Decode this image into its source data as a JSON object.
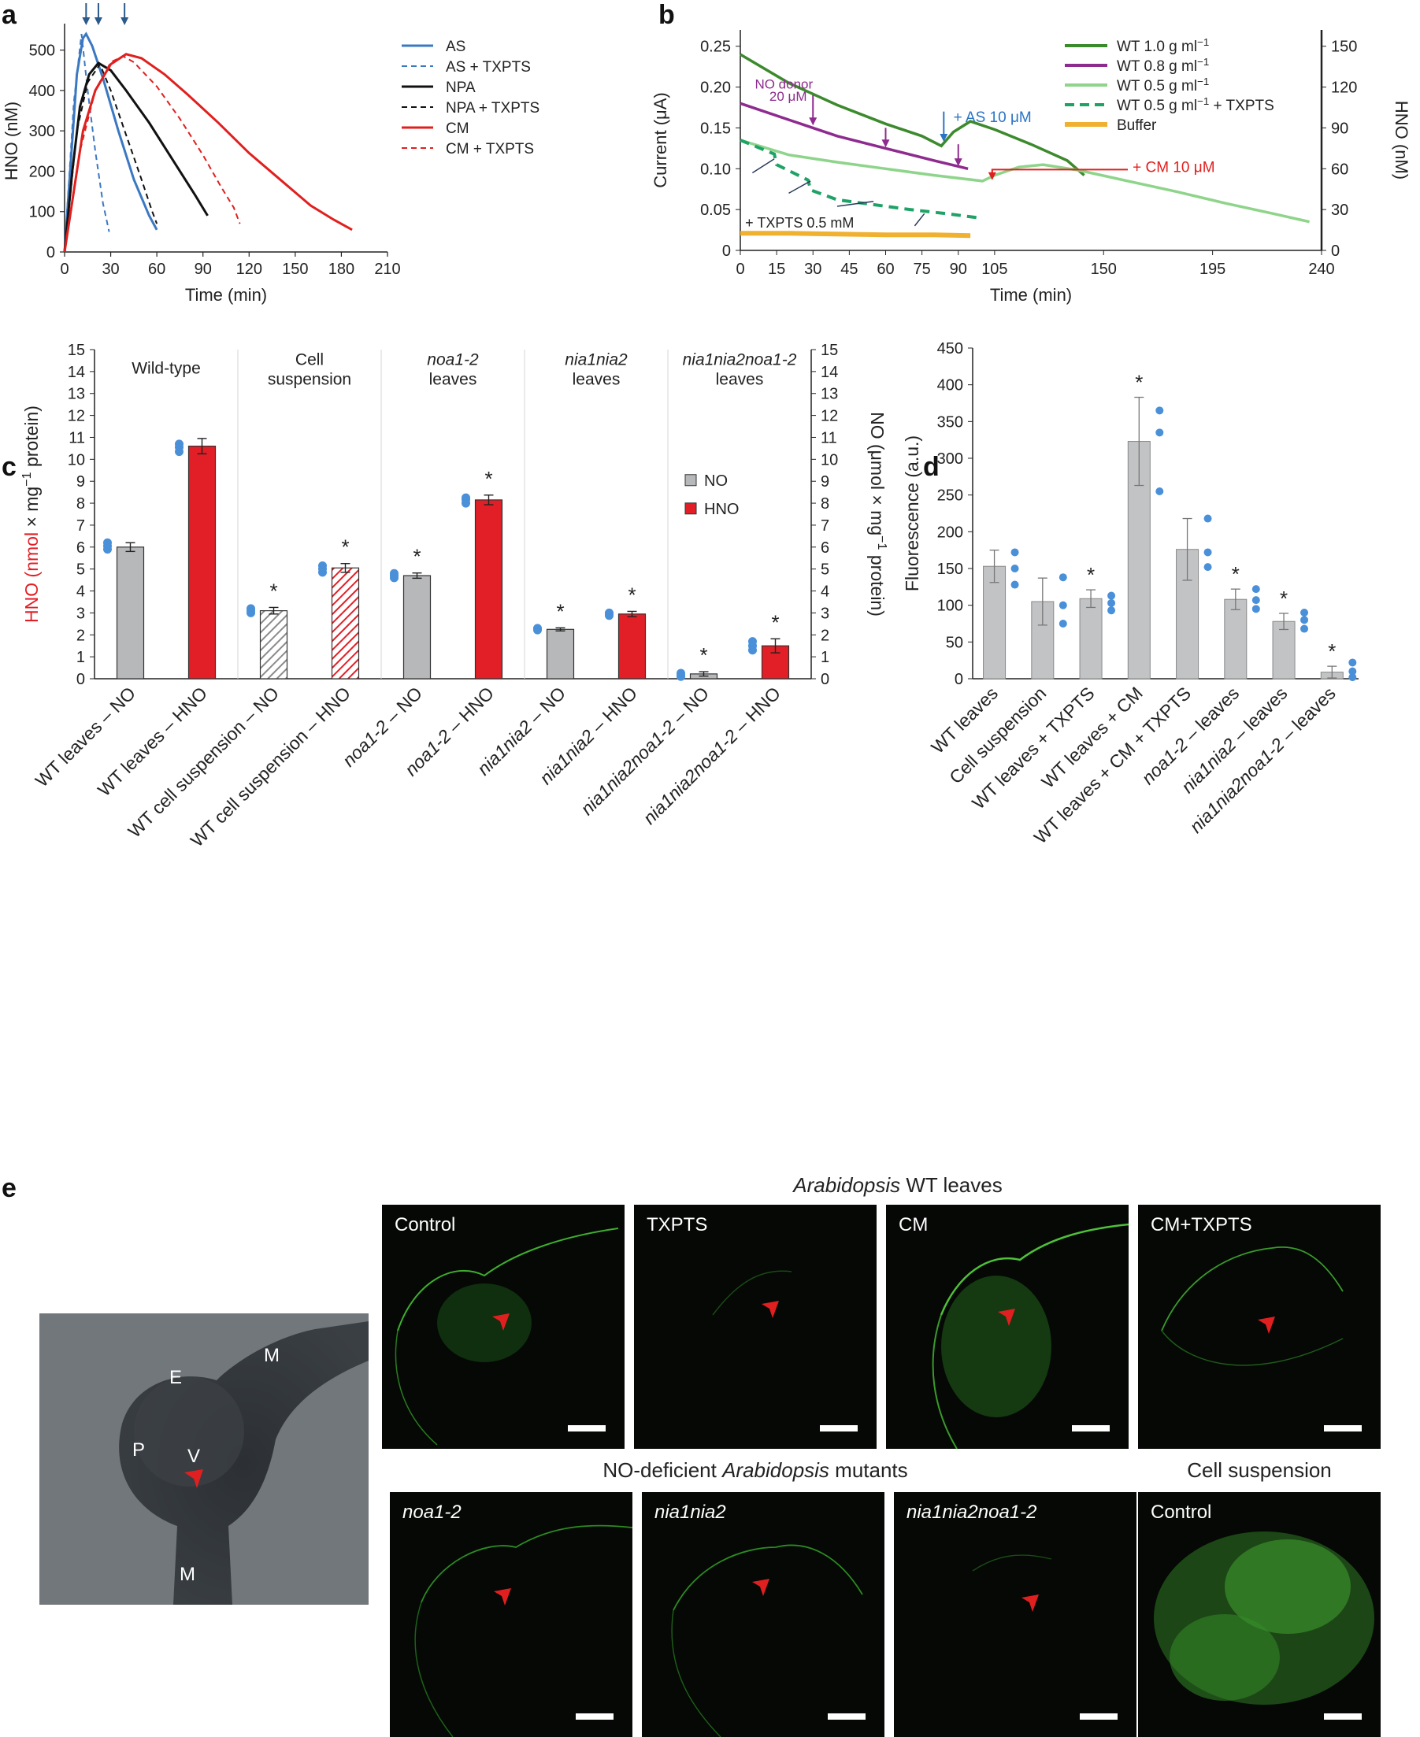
{
  "panel_labels": {
    "a": "a",
    "b": "b",
    "c": "c",
    "d": "d",
    "e": "e"
  },
  "chart_data": [
    {
      "id": "a",
      "type": "line",
      "xlabel": "Time (min)",
      "ylabel": "HNO (nM)",
      "xlim": [
        0,
        210
      ],
      "ylim": [
        0,
        550
      ],
      "xticks": [
        0,
        30,
        60,
        90,
        120,
        150,
        180,
        210
      ],
      "yticks": [
        0,
        100,
        200,
        300,
        400,
        500
      ],
      "legend_position": "top-right",
      "series": [
        {
          "name": "AS",
          "color": "#3b78c2",
          "dash": false,
          "points": [
            [
              0,
              0
            ],
            [
              4,
              220
            ],
            [
              8,
              440
            ],
            [
              12,
              530
            ],
            [
              14,
              540
            ],
            [
              18,
              510
            ],
            [
              25,
              430
            ],
            [
              35,
              300
            ],
            [
              45,
              180
            ],
            [
              55,
              90
            ],
            [
              60,
              55
            ]
          ]
        },
        {
          "name": "AS + TXPTS",
          "color": "#3b78c2",
          "dash": true,
          "points": [
            [
              0,
              0
            ],
            [
              6,
              370
            ],
            [
              11,
              540
            ],
            [
              15,
              400
            ],
            [
              20,
              250
            ],
            [
              25,
              120
            ],
            [
              29,
              50
            ]
          ]
        },
        {
          "name": "NPA",
          "color": "#111111",
          "dash": false,
          "points": [
            [
              0,
              0
            ],
            [
              5,
              200
            ],
            [
              10,
              360
            ],
            [
              16,
              440
            ],
            [
              22,
              468
            ],
            [
              30,
              450
            ],
            [
              40,
              400
            ],
            [
              55,
              320
            ],
            [
              70,
              230
            ],
            [
              85,
              140
            ],
            [
              93,
              90
            ]
          ]
        },
        {
          "name": "NPA + TXPTS",
          "color": "#111111",
          "dash": true,
          "points": [
            [
              0,
              0
            ],
            [
              8,
              300
            ],
            [
              15,
              420
            ],
            [
              23,
              465
            ],
            [
              30,
              400
            ],
            [
              40,
              290
            ],
            [
              50,
              180
            ],
            [
              57,
              100
            ],
            [
              60,
              70
            ]
          ]
        },
        {
          "name": "CM",
          "color": "#e0201e",
          "dash": false,
          "points": [
            [
              0,
              0
            ],
            [
              6,
              150
            ],
            [
              12,
              300
            ],
            [
              20,
              400
            ],
            [
              30,
              465
            ],
            [
              40,
              490
            ],
            [
              50,
              480
            ],
            [
              65,
              440
            ],
            [
              80,
              390
            ],
            [
              100,
              320
            ],
            [
              120,
              245
            ],
            [
              140,
              180
            ],
            [
              160,
              115
            ],
            [
              175,
              80
            ],
            [
              187,
              55
            ]
          ]
        },
        {
          "name": "CM + TXPTS",
          "color": "#e0201e",
          "dash": true,
          "points": [
            [
              0,
              0
            ],
            [
              10,
              250
            ],
            [
              20,
              400
            ],
            [
              30,
              470
            ],
            [
              38,
              485
            ],
            [
              45,
              470
            ],
            [
              60,
              410
            ],
            [
              75,
              330
            ],
            [
              90,
              240
            ],
            [
              102,
              160
            ],
            [
              110,
              110
            ],
            [
              114,
              70
            ]
          ]
        }
      ],
      "arrows_x": [
        14,
        22,
        39
      ]
    },
    {
      "id": "b",
      "type": "line",
      "xlabel": "Time (min)",
      "ylabel": "Current (μA)",
      "ylabel_right": "HNO (nM)",
      "xlim": [
        0,
        240
      ],
      "ylim": [
        0,
        0.27
      ],
      "ylim_right": [
        0,
        162
      ],
      "xticks": [
        0,
        15,
        30,
        45,
        60,
        75,
        90,
        105,
        150,
        195,
        240
      ],
      "yticks": [
        0,
        0.05,
        0.1,
        0.15,
        0.2,
        0.25
      ],
      "yticks_labels": [
        "0",
        "0.05",
        "0.10",
        "0.15",
        "0.20",
        "0.25"
      ],
      "yticks_right": [
        0,
        30,
        60,
        90,
        120,
        150
      ],
      "legend_position": "top-right",
      "series": [
        {
          "name": "WT 1.0 g ml",
          "sup": "−1",
          "color": "#3d8a2e",
          "dash": false,
          "points": [
            [
              0,
              0.24
            ],
            [
              20,
              0.205
            ],
            [
              40,
              0.178
            ],
            [
              60,
              0.155
            ],
            [
              75,
              0.14
            ],
            [
              83,
              0.128
            ],
            [
              88,
              0.145
            ],
            [
              95,
              0.158
            ],
            [
              105,
              0.148
            ],
            [
              120,
              0.13
            ],
            [
              135,
              0.11
            ],
            [
              142,
              0.092
            ]
          ]
        },
        {
          "name": "WT 0.8 g ml",
          "sup": "−1",
          "color": "#8e2b8e",
          "dash": false,
          "points": [
            [
              0,
              0.18
            ],
            [
              20,
              0.16
            ],
            [
              40,
              0.14
            ],
            [
              60,
              0.125
            ],
            [
              80,
              0.11
            ],
            [
              94,
              0.1
            ]
          ]
        },
        {
          "name": "WT 0.5 g ml",
          "sup": "−1",
          "color": "#8ed48a",
          "dash": false,
          "points": [
            [
              0,
              0.135
            ],
            [
              20,
              0.117
            ],
            [
              40,
              0.108
            ],
            [
              60,
              0.1
            ],
            [
              80,
              0.092
            ],
            [
              100,
              0.085
            ],
            [
              105,
              0.092
            ],
            [
              115,
              0.102
            ],
            [
              125,
              0.105
            ],
            [
              140,
              0.098
            ],
            [
              160,
              0.085
            ],
            [
              180,
              0.072
            ],
            [
              200,
              0.058
            ],
            [
              220,
              0.045
            ],
            [
              235,
              0.035
            ]
          ]
        },
        {
          "name": "WT 0.5 g ml",
          "sup": "−1",
          "suffix": " + TXPTS",
          "color": "#1fa266",
          "dash": true,
          "points": [
            [
              0,
              0.135
            ],
            [
              14,
              0.118
            ],
            [
              15,
              0.105
            ],
            [
              28,
              0.086
            ],
            [
              29,
              0.074
            ],
            [
              40,
              0.062
            ],
            [
              55,
              0.056
            ],
            [
              70,
              0.05
            ],
            [
              85,
              0.045
            ],
            [
              98,
              0.04
            ]
          ]
        },
        {
          "name": "Buffer",
          "color": "#f0b030",
          "dash": false,
          "points": [
            [
              0,
              0.021
            ],
            [
              20,
              0.021
            ],
            [
              40,
              0.02
            ],
            [
              60,
              0.019
            ],
            [
              80,
              0.019
            ],
            [
              95,
              0.018
            ]
          ]
        }
      ],
      "annotations": [
        {
          "text": "NO donor",
          "color": "#8e2b8e"
        },
        {
          "text": "20 μM",
          "color": "#8e2b8e"
        },
        {
          "text": "+ AS 10 μM",
          "color": "#2b74c4"
        },
        {
          "text": "+ CM 10 μM",
          "color": "#e0201e"
        },
        {
          "text": "+ TXPTS 0.5 mM",
          "color": "#222222"
        }
      ]
    },
    {
      "id": "c",
      "type": "bar",
      "ylabel_parts": [
        "HNO (",
        "nmol",
        " × mg",
        "−1",
        " protein)"
      ],
      "ylabel_right": "NO (μmol × mg",
      "ylabel_right_sup": "−1",
      "ylabel_right_end": " protein)",
      "ylim": [
        0,
        15
      ],
      "yticks": [
        0,
        1,
        2,
        3,
        4,
        5,
        6,
        7,
        8,
        9,
        10,
        11,
        12,
        13,
        14,
        15
      ],
      "groups": [
        {
          "label": "Wild-type",
          "italic": false
        },
        {
          "label": "Cell",
          "label2": "suspension",
          "italic": false
        },
        {
          "label": "noa1-2",
          "label2": "leaves",
          "italic": true
        },
        {
          "label": "nia1nia2",
          "label2": "leaves",
          "italic": true
        },
        {
          "label": "nia1nia2noa1-2",
          "label2": "leaves",
          "italic": true
        }
      ],
      "legend": [
        {
          "name": "NO",
          "color": "#b7b8ba"
        },
        {
          "name": "HNO",
          "color": "#e21f26"
        }
      ],
      "categories": [
        "WT leaves – NO",
        "WT leaves – HNO",
        "WT cell suspension – NO",
        "WT cell suspension – HNO",
        "noa1-2 – NO",
        "noa1-2 – HNO",
        "nia1nia2 – NO",
        "nia1nia2 – HNO",
        "nia1nia2noa1-2 – NO",
        "nia1nia2noa1-2 – HNO"
      ],
      "values": [
        6.0,
        10.6,
        3.1,
        5.05,
        4.7,
        8.15,
        2.25,
        2.95,
        0.22,
        1.5
      ],
      "errors": [
        0.2,
        0.35,
        0.15,
        0.2,
        0.12,
        0.22,
        0.07,
        0.12,
        0.1,
        0.32
      ],
      "hatched": [
        false,
        false,
        true,
        true,
        false,
        false,
        false,
        false,
        false,
        false
      ],
      "types": [
        "NO",
        "HNO",
        "NO",
        "HNO",
        "NO",
        "HNO",
        "NO",
        "HNO",
        "NO",
        "HNO"
      ],
      "significant": [
        false,
        false,
        true,
        true,
        true,
        true,
        true,
        true,
        true,
        true
      ],
      "dots": [
        [
          5.9,
          6.05,
          6.2
        ],
        [
          10.35,
          10.55,
          10.7
        ],
        [
          3.0,
          3.1,
          3.2
        ],
        [
          4.85,
          5.0,
          5.15
        ],
        [
          4.6,
          4.7,
          4.8
        ],
        [
          8.0,
          8.15,
          8.25
        ],
        [
          2.22,
          2.25,
          2.3
        ],
        [
          2.88,
          2.95,
          3.0
        ],
        [
          0.1,
          0.15,
          0.25
        ],
        [
          1.3,
          1.5,
          1.7
        ]
      ],
      "sig_mark": "*"
    },
    {
      "id": "d",
      "type": "bar",
      "ylabel": "Fluorescence (a.u.)",
      "ylim": [
        0,
        450
      ],
      "yticks": [
        0,
        50,
        100,
        150,
        200,
        250,
        300,
        350,
        400,
        450
      ],
      "categories": [
        "WT leaves",
        "Cell suspension",
        "WT leaves + TXPTS",
        "WT leaves + CM",
        "WT leaves + CM + TXPTS",
        "noa1-2 – leaves",
        "nia1nia2 – leaves",
        "nia1nia2noa1-2 – leaves"
      ],
      "italic_prefix": [
        false,
        false,
        false,
        false,
        false,
        true,
        true,
        true
      ],
      "values": [
        153,
        105,
        109,
        323,
        176,
        108,
        78,
        9
      ],
      "errors": [
        22,
        32,
        12,
        60,
        42,
        14,
        11,
        8
      ],
      "significant": [
        false,
        false,
        true,
        true,
        false,
        true,
        true,
        true
      ],
      "dots": [
        [
          128,
          150,
          172
        ],
        [
          75,
          100,
          138
        ],
        [
          93,
          103,
          113
        ],
        [
          255,
          335,
          365
        ],
        [
          152,
          172,
          218
        ],
        [
          95,
          107,
          122
        ],
        [
          68,
          80,
          90
        ],
        [
          2,
          10,
          22
        ]
      ],
      "bar_color": "#c2c3c5",
      "dot_color": "#4a90d9",
      "sig_mark": "*"
    }
  ],
  "panel_e": {
    "title_prefix": "Arabidopsis",
    "title_suffix": " WT leaves",
    "row2_title_prefix": "NO-deficient ",
    "row2_title_italic": "Arabidopsis",
    "row2_title_suffix": " mutants",
    "cell_title": "Cell suspension",
    "brightfield_labels": [
      "E",
      "M",
      "P",
      "V",
      "M"
    ],
    "images_row1": [
      "Control",
      "TXPTS",
      "CM",
      "CM+TXPTS"
    ],
    "images_row2": [
      "noa1-2",
      "nia1nia2",
      "nia1nia2noa1-2",
      "Control"
    ],
    "images_row2_italic": [
      true,
      true,
      true,
      false
    ]
  }
}
